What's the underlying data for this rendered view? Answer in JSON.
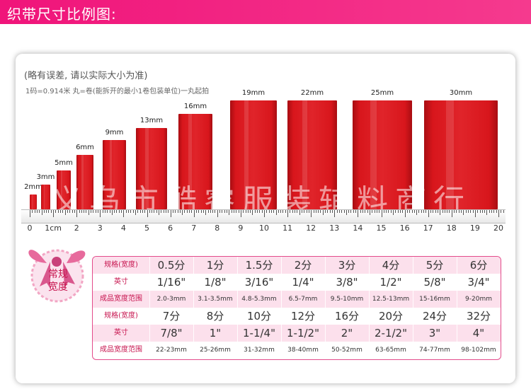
{
  "banner": {
    "title": "织带尺寸比例图:"
  },
  "notes": {
    "disclaimer": "(略有误差, 请以实际大小为准)",
    "unit_note": "1码=0.914米 丸=卷(能拆开的最小1卷包装单位)一丸起拍"
  },
  "watermark": "义乌市酷睿服装辅料商行",
  "ribbons": [
    {
      "label": "2mm"
    },
    {
      "label": "3mm"
    },
    {
      "label": "5mm"
    },
    {
      "label": "6mm"
    },
    {
      "label": "9mm"
    },
    {
      "label": "13mm"
    },
    {
      "label": "16mm"
    },
    {
      "label": "19mm"
    },
    {
      "label": "22mm"
    },
    {
      "label": "25mm"
    },
    {
      "label": "30mm"
    }
  ],
  "ruler": {
    "numbers": [
      "0",
      "1cm",
      "2",
      "3",
      "4",
      "5",
      "6",
      "7",
      "8",
      "9",
      "10",
      "11",
      "12",
      "13",
      "14",
      "15",
      "16",
      "17",
      "18",
      "19",
      "20"
    ]
  },
  "badge": {
    "line1": "常规",
    "line2": "宽度"
  },
  "table": {
    "rows": [
      {
        "header": "规格(宽度)",
        "cells": [
          "0.5分",
          "1分",
          "1.5分",
          "2分",
          "3分",
          "4分",
          "5分",
          "6分"
        ],
        "style": "v"
      },
      {
        "header": "英寸",
        "cells": [
          "1/16\"",
          "1/8\"",
          "3/16\"",
          "1/4\"",
          "3/8\"",
          "1/2\"",
          "5/8\"",
          "3/4\""
        ],
        "style": "v"
      },
      {
        "header": "成品宽度范围",
        "cells": [
          "2.0-3mm",
          "3.1-3.5mm",
          "4.8-5.3mm",
          "6.5-7mm",
          "9.5-10mm",
          "12.5-13mm",
          "15-16mm",
          "9-20mm"
        ],
        "style": "s"
      },
      {
        "header": "规格(宽度)",
        "cells": [
          "7分",
          "8分",
          "10分",
          "12分",
          "16分",
          "20分",
          "24分",
          "32分"
        ],
        "style": "v"
      },
      {
        "header": "英寸",
        "cells": [
          "7/8\"",
          "1\"",
          "1-1/4\"",
          "1-1/2\"",
          "2\"",
          "2-1/2\"",
          "3\"",
          "4\""
        ],
        "style": "v"
      },
      {
        "header": "成品宽度范围",
        "cells": [
          "22-23mm",
          "25-26mm",
          "31-32mm",
          "38-40mm",
          "50-52mm",
          "63-65mm",
          "74-77mm",
          "98-102mm"
        ],
        "style": "s"
      }
    ]
  },
  "colors": {
    "accent": "#f0147a",
    "ribbon_red": "#d8161c",
    "table_border": "#e34b8b",
    "table_header_text": "#c7154f"
  }
}
